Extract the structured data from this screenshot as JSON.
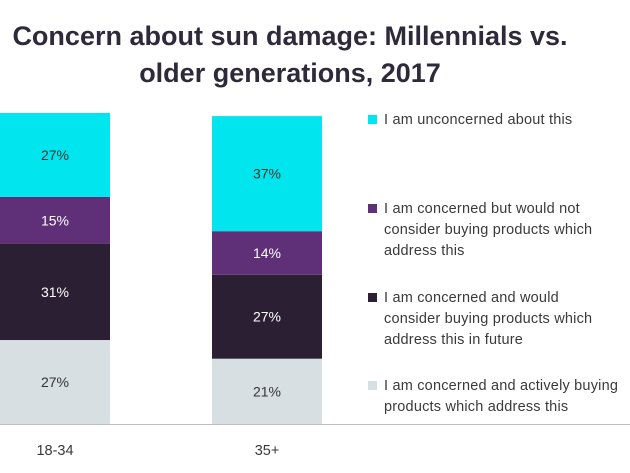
{
  "chart_data": {
    "type": "bar",
    "stacked": true,
    "title": "Concern about sun damage: Millennials vs. older generations, 2017",
    "title_lines": [
      "Concern about sun damage: Millennials vs.",
      "older generations, 2017"
    ],
    "categories": [
      "18-34",
      "35+"
    ],
    "series": [
      {
        "name": "I am concerned and actively buying products which address this",
        "color": "#d8dfe3",
        "values": [
          27,
          21
        ],
        "labels": [
          "27%",
          "21%"
        ],
        "label_color": "#333333"
      },
      {
        "name": "I am concerned and would consider buying products which address this in future",
        "color": "#2b2033",
        "values": [
          31,
          27
        ],
        "labels": [
          "31%",
          "27%"
        ],
        "label_color": "#ffffff"
      },
      {
        "name": "I am concerned but would not consider buying products which address this",
        "color": "#5f2f77",
        "values": [
          15,
          14
        ],
        "labels": [
          "15%",
          "14%"
        ],
        "label_color": "#ffffff"
      },
      {
        "name": "I am unconcerned about this",
        "color": "#00e5ee",
        "values": [
          27,
          37
        ],
        "labels": [
          "27%",
          "37%"
        ],
        "label_color": "#333333"
      }
    ],
    "legend": {
      "position": "right",
      "entries": [
        {
          "text": "I am unconcerned about this",
          "color": "#00e5ee"
        },
        {
          "text": "I am concerned but would not\nconsider buying products which\naddress this",
          "color": "#5f2f77"
        },
        {
          "text": "I am concerned and would\nconsider buying products which\naddress this in future",
          "color": "#2b2033"
        },
        {
          "text": "I am concerned and actively buying\nproducts which address this",
          "color": "#d8dfe3"
        }
      ]
    },
    "xlabel": "",
    "ylabel": "",
    "grid": false
  }
}
